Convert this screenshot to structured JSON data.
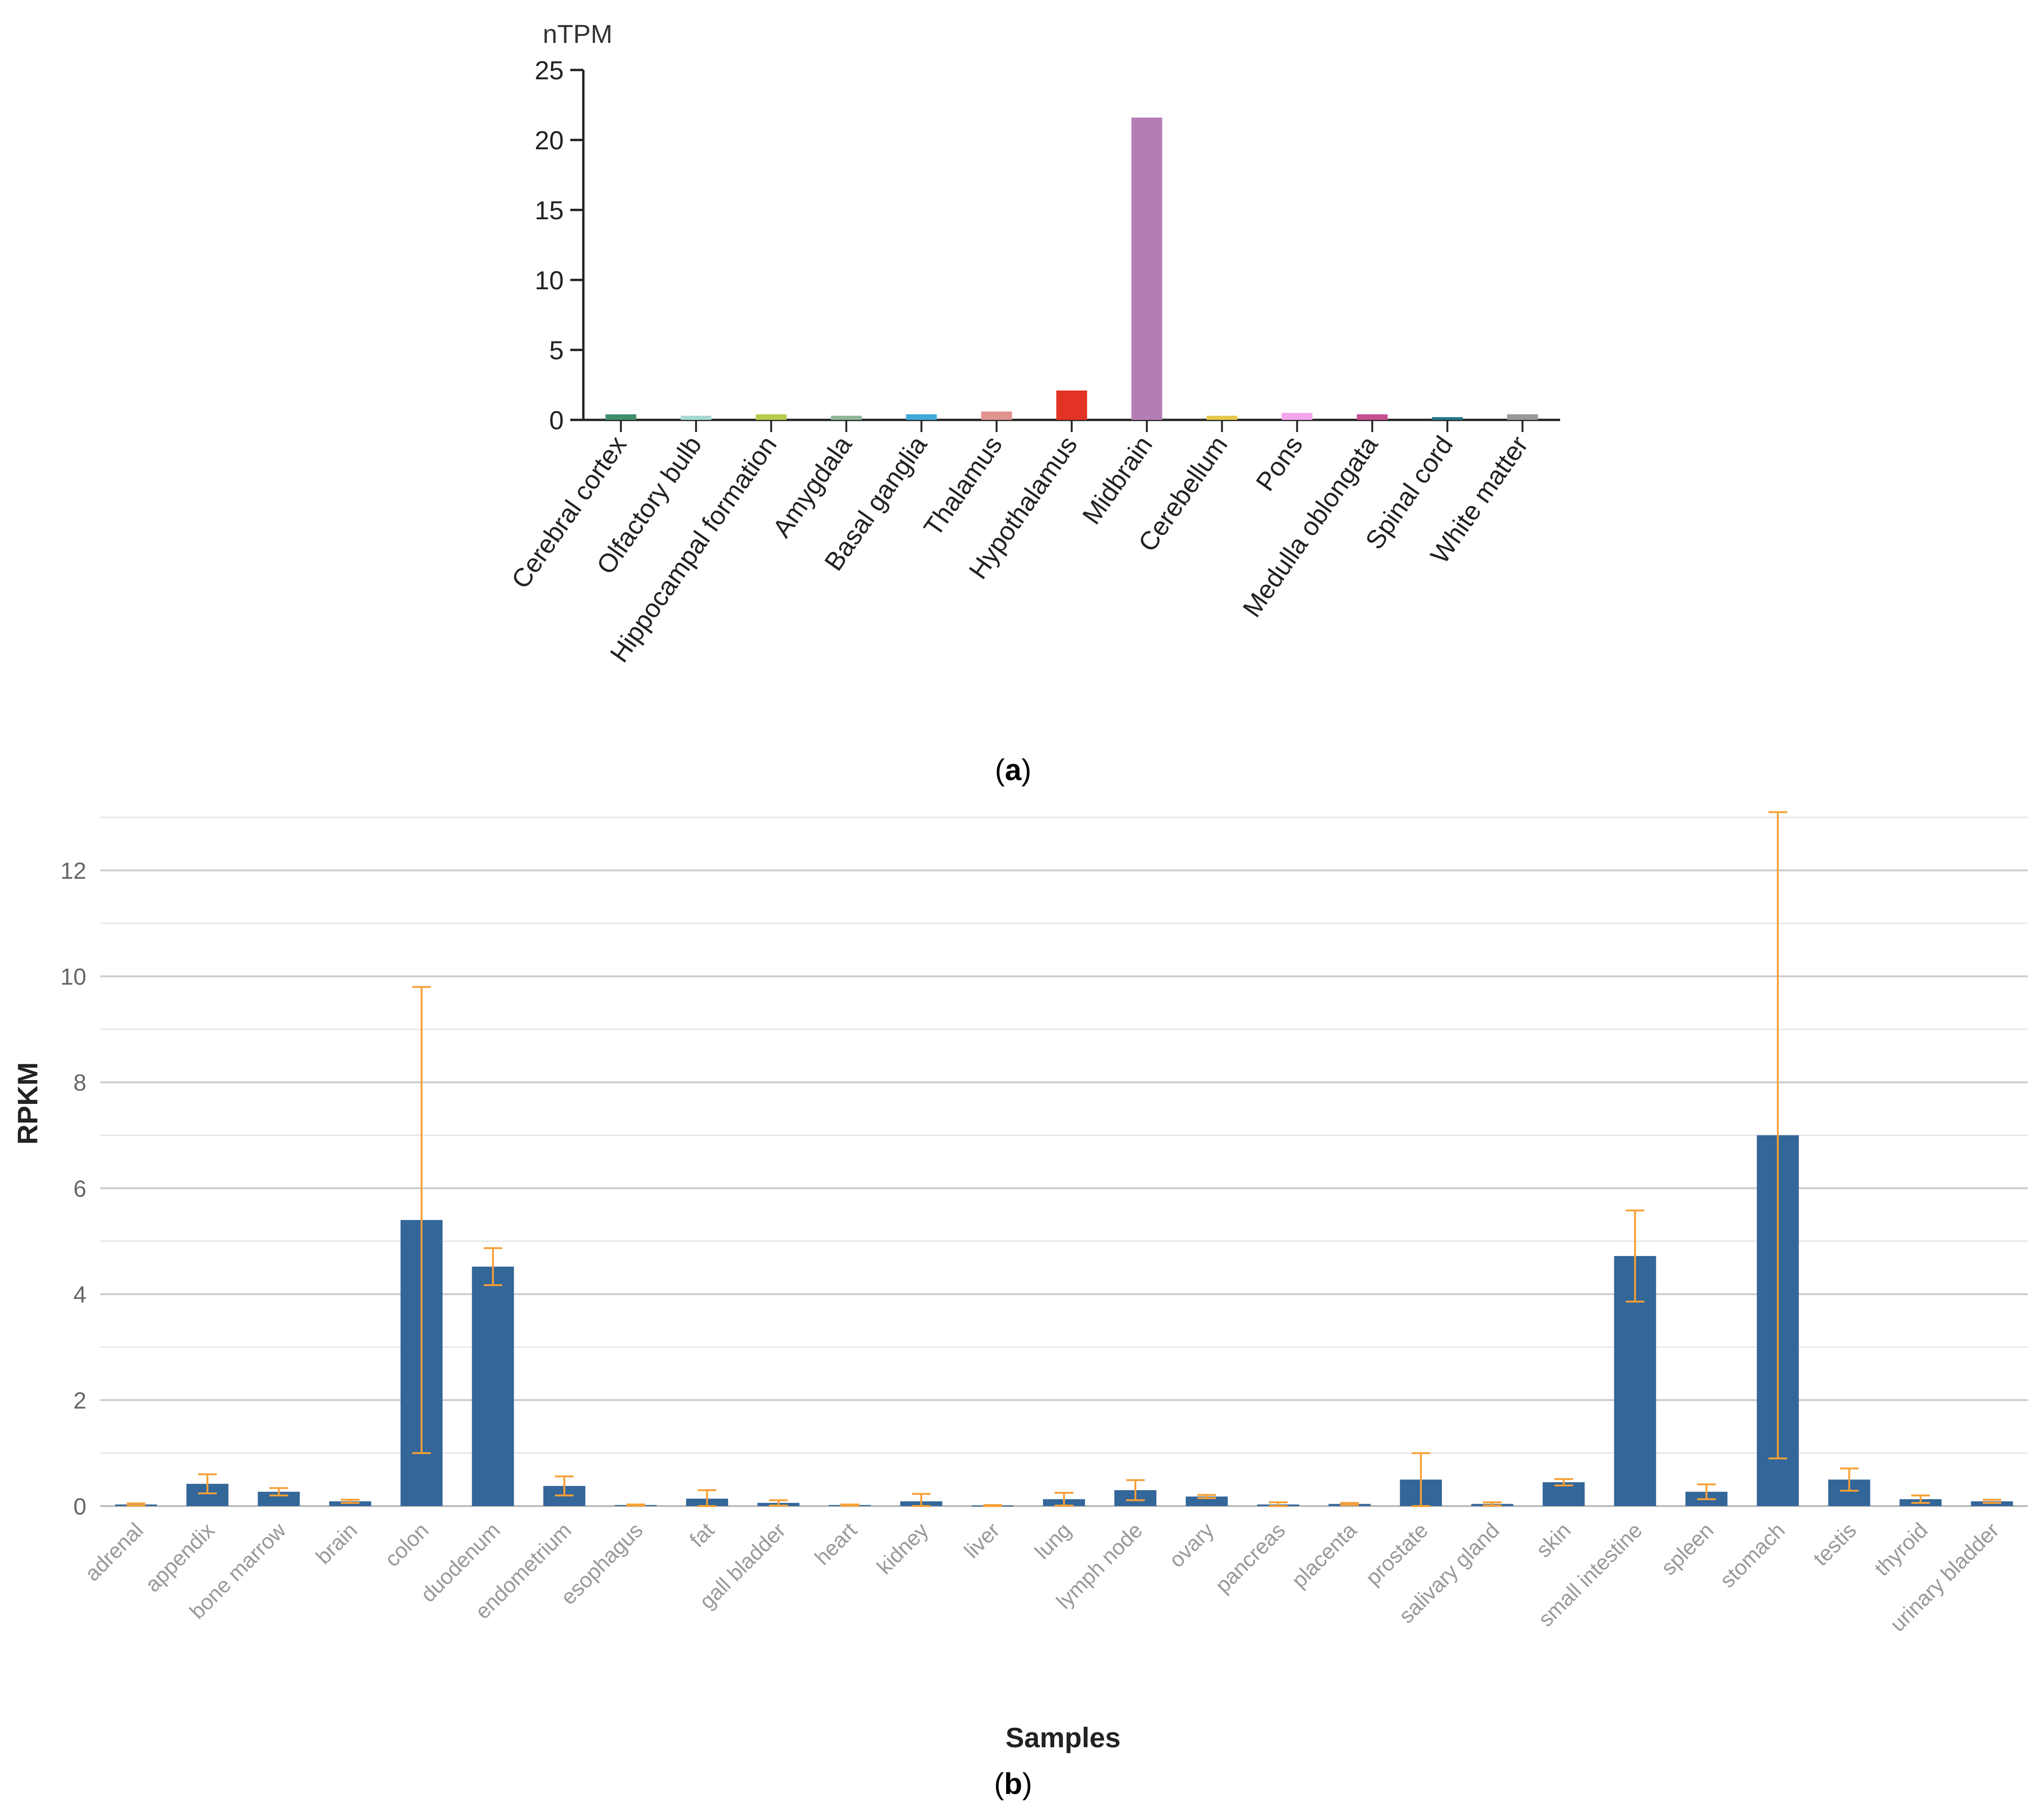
{
  "chart_data": [
    {
      "type": "bar",
      "panel_label": "a",
      "title": "",
      "ylabel": "nTPM",
      "xlabel": "",
      "ylim": [
        0,
        25
      ],
      "yticks": [
        0,
        5,
        10,
        15,
        20,
        25
      ],
      "grid": false,
      "categories": [
        "Cerebral cortex",
        "Olfactory bulb",
        "Hippocampal formation",
        "Amygdala",
        "Basal ganglia",
        "Thalamus",
        "Hypothalamus",
        "Midbrain",
        "Cerebellum",
        "Pons",
        "Medulla oblongata",
        "Spinal cord",
        "White matter"
      ],
      "values": [
        0.4,
        0.3,
        0.4,
        0.3,
        0.4,
        0.6,
        2.1,
        21.6,
        0.3,
        0.5,
        0.4,
        0.2,
        0.4
      ],
      "colors": [
        "#3f8f6b",
        "#a6d9d0",
        "#b5cc4a",
        "#8fb89a",
        "#3fa9d8",
        "#e0928e",
        "#e23324",
        "#b57db5",
        "#e6c94a",
        "#f4a6ea",
        "#c54f91",
        "#1f7a8c",
        "#999999"
      ]
    },
    {
      "type": "bar",
      "panel_label": "b",
      "title": "",
      "ylabel": "RPKM",
      "xlabel": "Samples",
      "ylim": [
        0,
        13
      ],
      "yticks": [
        0,
        2,
        4,
        6,
        8,
        10,
        12
      ],
      "grid": true,
      "bar_color": "#336699",
      "error_color": "#f7a035",
      "categories": [
        "adrenal",
        "appendix",
        "bone marrow",
        "brain",
        "colon",
        "duodenum",
        "endometrium",
        "esophagus",
        "fat",
        "gall bladder",
        "heart",
        "kidney",
        "liver",
        "lung",
        "lymph node",
        "ovary",
        "pancreas",
        "placenta",
        "prostate",
        "salivary gland",
        "skin",
        "small intestine",
        "spleen",
        "stomach",
        "testis",
        "thyroid",
        "urinary bladder"
      ],
      "values": [
        0.03,
        0.42,
        0.27,
        0.09,
        5.4,
        4.52,
        0.38,
        0.02,
        0.14,
        0.06,
        0.02,
        0.09,
        0.01,
        0.13,
        0.3,
        0.18,
        0.03,
        0.04,
        0.5,
        0.04,
        0.45,
        4.72,
        0.27,
        7.0,
        0.5,
        0.13,
        0.09
      ],
      "errors": [
        0.02,
        0.18,
        0.07,
        0.03,
        4.4,
        0.35,
        0.18,
        0.01,
        0.16,
        0.05,
        0.01,
        0.14,
        0.01,
        0.12,
        0.19,
        0.03,
        0.04,
        0.02,
        0.5,
        0.03,
        0.06,
        0.86,
        0.14,
        6.1,
        0.21,
        0.07,
        0.03
      ]
    }
  ]
}
